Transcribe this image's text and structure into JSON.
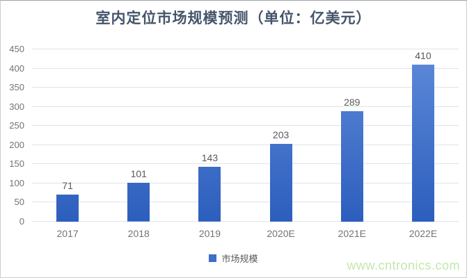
{
  "chart_data": {
    "type": "bar",
    "title": "室内定位市场规模预测（单位：亿美元）",
    "categories": [
      "2017",
      "2018",
      "2019",
      "2020E",
      "2021E",
      "2022E"
    ],
    "values": [
      71,
      101,
      143,
      203,
      289,
      410
    ],
    "legend": "市场规模",
    "legend_position": "bottom",
    "xlabel": "",
    "ylabel": "",
    "ylim": [
      0,
      450
    ],
    "ytick_step": 50,
    "grid": "horizontal"
  },
  "watermark": {
    "text": "www.cntronics.com"
  },
  "colors": {
    "title": "#44546a",
    "tick_label": "#737373",
    "value_label": "#595959",
    "gridline": "#dde4ee",
    "bar_gradient_top": "#5e8ad9",
    "bar_gradient_bottom": "#2c5ebd",
    "legend_swatch": "#3d6ec9",
    "watermark": "#c3e7ae",
    "background": "#ffffff"
  }
}
